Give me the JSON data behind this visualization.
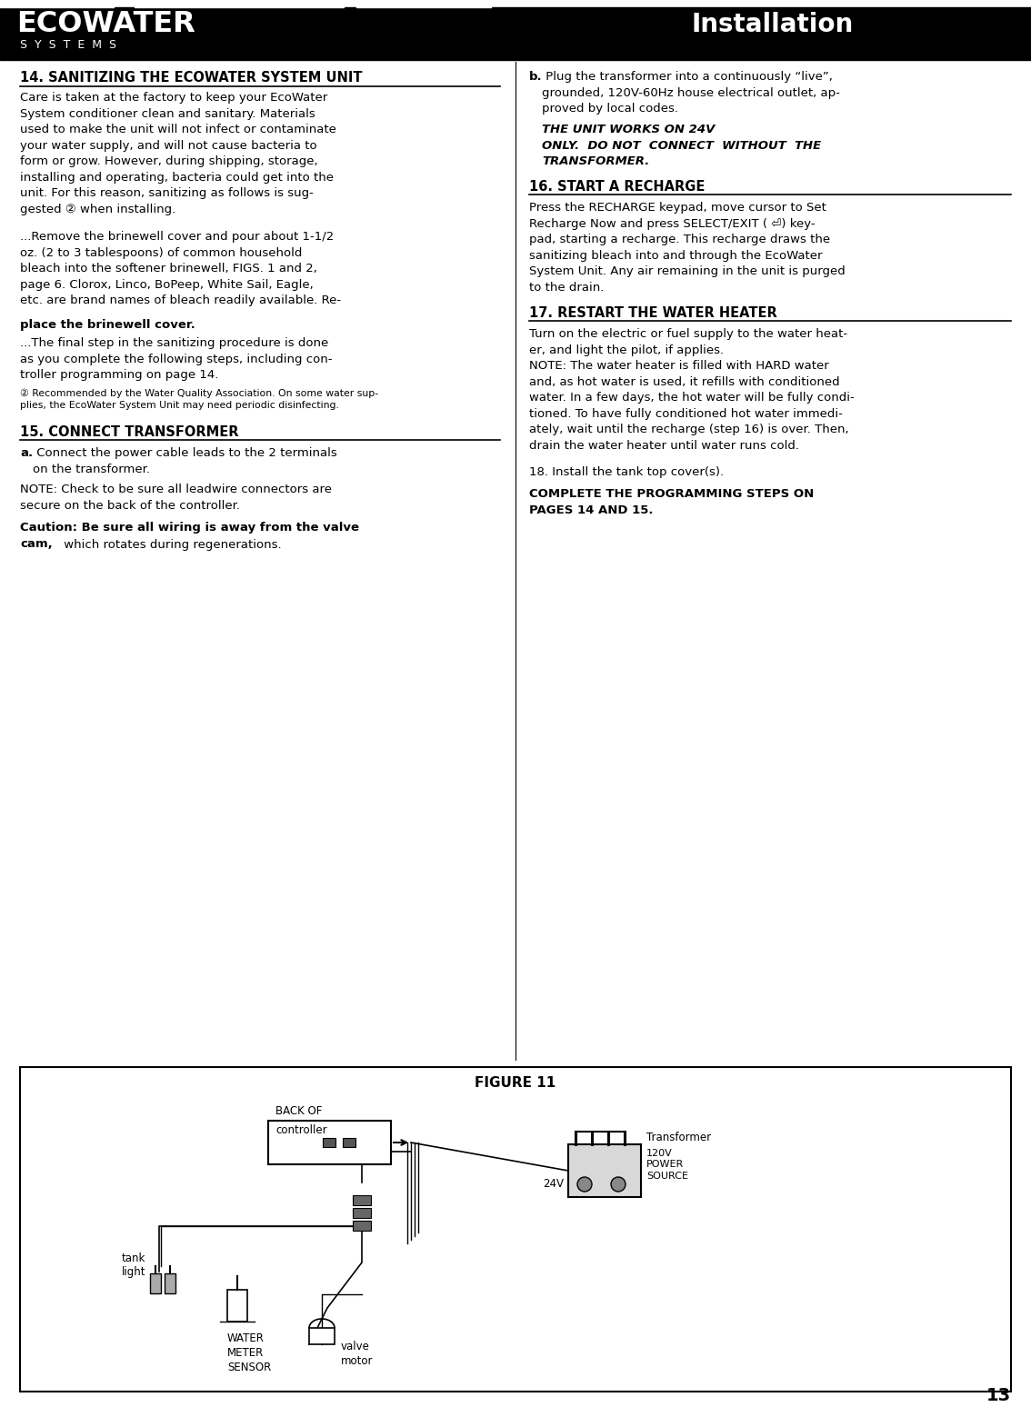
{
  "page_bg": "#ffffff",
  "header_bg": "#000000",
  "header_text_color": "#ffffff",
  "ecowater_text": "ECOWATER",
  "systems_text": "S  Y  S  T  E  M  S",
  "installation_text": "Installation",
  "body_text_color": "#000000",
  "page_number": "13",
  "section14_title": "14. SANITIZING THE ECOWATER SYSTEM UNIT",
  "section14_body1": "Care is taken at the factory to keep your EcoWater\nSystem conditioner clean and sanitary. Materials\nused to make the unit will not infect or contaminate\nyour water supply, and will not cause bacteria to\nform or grow. However, during shipping, storage,\ninstalling and operating, bacteria could get into the\nunit. For this reason, sanitizing as follows is sug-\ngested ② when installing.",
  "section14_body2_normal": "...Remove the brinewell cover and pour about 1-1/2\noz. (2 to 3 tablespoons) of common household\nbleach into the softener brinewell, FIGS. 1 and 2,\npage 6. Clorox, Linco, BoPeep, White Sail, Eagle,\netc. are brand names of bleach readily available. Re-",
  "section14_body2_bold": "place the brinewell cover.",
  "section14_body3": "...The final step in the sanitizing procedure is done\nas you complete the following steps, including con-\ntroller programming on page 14.",
  "section14_footnote": "② Recommended by the Water Quality Association. On some water sup-\nplies, the EcoWater System Unit may need periodic disinfecting.",
  "section15_title": "15. CONNECT TRANSFORMER",
  "section15_a_bold": "a.",
  "section15_a_normal": " Connect the power cable leads to the 2 terminals\non the transformer.",
  "section15_note": "NOTE: Check to be sure all leadwire connectors are\nsecure on the back of the controller.",
  "section15_caution_bold": "Caution: Be sure all wiring is away from the valve\ncam,",
  "section15_caution_normal": " which rotates during regenerations.",
  "section15_b_bold": "b.",
  "section15_b_normal": " Plug the transformer into a continuously “live”,\ngrounded, 120V-60Hz house electrical outlet, ap-\nproved by local codes. ",
  "section15_b_bolditalic": "THE UNIT WORKS ON 24V\nONLY.  DO NOT  CONNECT  WITHOUT  THE\nTRANSFORMER.",
  "section16_title": "16. START A RECHARGE",
  "section16_body": "Press the RECHARGE keypad, move cursor to Set\nRecharge Now and press SELECT/EXIT ( ⏎) key-\npad, starting a recharge. This recharge draws the\nsanitizing bleach into and through the EcoWater\nSystem Unit. Any air remaining in the unit is purged\nto the drain.",
  "section17_title": "17. RESTART THE WATER HEATER",
  "section17_body": "Turn on the electric or fuel supply to the water heat-\ner, and light the pilot, if applies.\nNOTE: The water heater is filled with HARD water\nand, as hot water is used, it refills with conditioned\nwater. In a few days, the hot water will be fully condi-\ntioned. To have fully conditioned hot water immedi-\nately, wait until the recharge (step 16) is over. Then,\ndrain the water heater until water runs cold.",
  "section18_normal": "18. Install the tank top cover(s).",
  "section18_bold": "COMPLETE THE PROGRAMMING STEPS ON\nPAGES 14 AND 15.",
  "figure_title": "FIGURE 11",
  "lbl_back_of": "BACK OF",
  "lbl_controller": "controller",
  "lbl_transformer": "Transformer",
  "lbl_24v": "24V",
  "lbl_120v": "120V",
  "lbl_power": "POWER",
  "lbl_source": "SOURCE",
  "lbl_tank": "tank",
  "lbl_light": "light",
  "lbl_water": "WATER",
  "lbl_meter": "METER",
  "lbl_sensor": "SENSOR",
  "lbl_valve": "valve",
  "lbl_motor": "motor"
}
